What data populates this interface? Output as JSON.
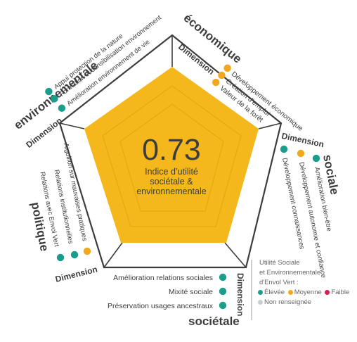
{
  "center": {
    "score": "0.73",
    "label_lines": [
      "Indice d’utilité",
      "sociétale &",
      "environnementale"
    ]
  },
  "colors": {
    "pentagon_fill": "#f4b81c",
    "pentagon_inner": "#e9ac12",
    "frame": "#3d3d3d",
    "teal": "#1a9e8b",
    "orange": "#f2a81d",
    "red": "#d81f4d",
    "grey": "#cccccc"
  },
  "dimensions": {
    "economique": {
      "word1": "Dimension",
      "word2": "économique",
      "criteria": [
        "Développement économique",
        "Création d'emploi",
        "Valeur de la forêt"
      ],
      "levels": [
        "orange",
        "orange",
        "orange"
      ]
    },
    "sociale": {
      "word1": "Dimension",
      "word2": "sociale",
      "criteria": [
        "Développement connaissances",
        "Développement autonomie et confiance",
        "Amélioration bien-être"
      ],
      "levels": [
        "teal",
        "orange",
        "teal"
      ]
    },
    "societale": {
      "word1": "Dimension",
      "word2": "sociétale",
      "criteria": [
        "Amélioration relations sociales",
        "Mixité sociale",
        "Préservation usages ancestraux"
      ],
      "levels": [
        "teal",
        "teal",
        "teal"
      ]
    },
    "politique": {
      "word1": "Dimension",
      "word2": "politique",
      "criteria": [
        "Aiguillon sur mauvaises pratiques",
        "Relations institutionnelles",
        "Relations avec Envol Vert"
      ],
      "levels": [
        "teal",
        "teal",
        "orange"
      ]
    },
    "environnementale": {
      "word1": "Dimension",
      "word2": "environnementale",
      "criteria": [
        "Appui protection de la nature",
        "Formation et sensibilisation environnement",
        "Amélioration environnement de vie"
      ],
      "levels": [
        "teal",
        "teal",
        "teal"
      ]
    }
  },
  "legend": {
    "title_lines": [
      "Utilité Sociale",
      "et Environnementale",
      "d'Envol Vert :"
    ],
    "items": [
      {
        "label": "Élevée",
        "color": "teal"
      },
      {
        "label": "Moyenne",
        "color": "orange"
      },
      {
        "label": "Faible",
        "color": "red"
      },
      {
        "label": "Non renseignée",
        "color": "grey"
      }
    ]
  }
}
